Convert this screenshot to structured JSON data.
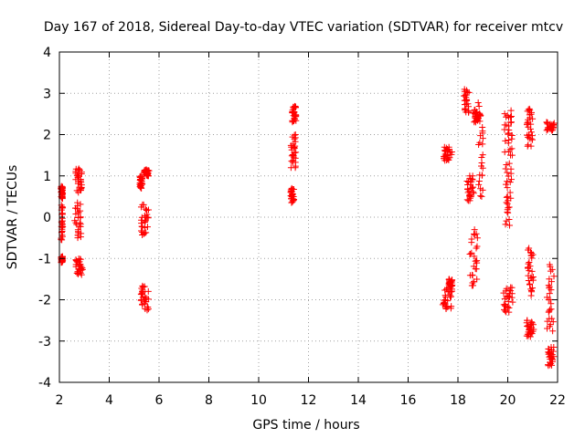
{
  "chart_data": {
    "type": "scatter",
    "title": "Day 167 of 2018, Sidereal Day-to-day VTEC variation (SDTVAR) for receiver mtcv",
    "xlabel": "GPS time / hours",
    "ylabel": "SDTVAR / TECUs",
    "xlim": [
      2,
      22
    ],
    "ylim": [
      -4,
      4
    ],
    "xticks": [
      2,
      4,
      6,
      8,
      10,
      12,
      14,
      16,
      18,
      20,
      22
    ],
    "yticks": [
      -4,
      -3,
      -2,
      -1,
      0,
      1,
      2,
      3,
      4
    ],
    "grid": true,
    "marker": "+",
    "color": "#ff0000",
    "clusters": [
      {
        "x": [
          2.05,
          2.15
        ],
        "y": [
          0.45,
          0.75
        ]
      },
      {
        "x": [
          2.05,
          2.15
        ],
        "y": [
          -0.55,
          0.3
        ]
      },
      {
        "x": [
          2.05,
          2.15
        ],
        "y": [
          -1.1,
          -0.95
        ]
      },
      {
        "x": [
          2.6,
          2.95
        ],
        "y": [
          0.6,
          1.2
        ]
      },
      {
        "x": [
          2.55,
          2.95
        ],
        "y": [
          -0.5,
          0.35
        ]
      },
      {
        "x": [
          2.6,
          3.0
        ],
        "y": [
          -1.4,
          -1.0
        ]
      },
      {
        "x": [
          5.2,
          5.35
        ],
        "y": [
          0.7,
          1.0
        ]
      },
      {
        "x": [
          5.35,
          5.65
        ],
        "y": [
          1.0,
          1.15
        ]
      },
      {
        "x": [
          5.2,
          5.65
        ],
        "y": [
          -0.45,
          0.3
        ]
      },
      {
        "x": [
          5.2,
          5.65
        ],
        "y": [
          -2.25,
          -1.65
        ]
      },
      {
        "x": [
          11.25,
          11.55
        ],
        "y": [
          1.2,
          2.0
        ]
      },
      {
        "x": [
          11.3,
          11.55
        ],
        "y": [
          2.3,
          2.7
        ]
      },
      {
        "x": [
          11.25,
          11.45
        ],
        "y": [
          0.35,
          0.7
        ]
      },
      {
        "x": [
          17.3,
          17.85
        ],
        "y": [
          1.35,
          1.7
        ]
      },
      {
        "x": [
          17.3,
          17.85
        ],
        "y": [
          -2.25,
          -1.7
        ]
      },
      {
        "x": [
          17.6,
          17.8
        ],
        "y": [
          -1.7,
          -1.5
        ]
      },
      {
        "x": [
          18.2,
          18.5
        ],
        "y": [
          2.5,
          3.1
        ]
      },
      {
        "x": [
          18.5,
          18.95
        ],
        "y": [
          2.3,
          2.6
        ]
      },
      {
        "x": [
          18.3,
          18.7
        ],
        "y": [
          0.4,
          1.0
        ]
      },
      {
        "x": [
          18.4,
          18.9
        ],
        "y": [
          -1.7,
          -0.3
        ]
      },
      {
        "x": [
          18.75,
          19.05
        ],
        "y": [
          0.5,
          2.8
        ]
      },
      {
        "x": [
          19.8,
          20.25
        ],
        "y": [
          1.5,
          2.6
        ]
      },
      {
        "x": [
          19.85,
          20.2
        ],
        "y": [
          -0.2,
          1.3
        ]
      },
      {
        "x": [
          19.75,
          20.3
        ],
        "y": [
          -2.3,
          -1.7
        ]
      },
      {
        "x": [
          20.7,
          21.05
        ],
        "y": [
          1.7,
          2.65
        ]
      },
      {
        "x": [
          20.75,
          21.1
        ],
        "y": [
          -1.9,
          -0.75
        ]
      },
      {
        "x": [
          20.7,
          21.1
        ],
        "y": [
          -2.9,
          -2.5
        ]
      },
      {
        "x": [
          21.45,
          21.95
        ],
        "y": [
          2.1,
          2.3
        ]
      },
      {
        "x": [
          21.45,
          21.95
        ],
        "y": [
          -2.8,
          -1.15
        ]
      },
      {
        "x": [
          21.55,
          21.9
        ],
        "y": [
          -3.6,
          -3.15
        ]
      }
    ]
  }
}
